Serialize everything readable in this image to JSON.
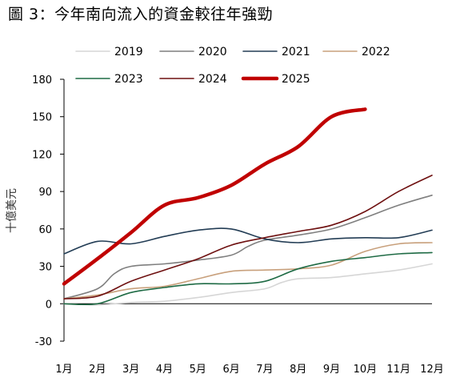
{
  "title": "圖 3：今年南向流入的資金較往年強勁",
  "chart_data": {
    "type": "line",
    "title": "圖 3：今年南向流入的資金較往年強勁",
    "xlabel": "",
    "ylabel": "十億美元",
    "categories": [
      "1月",
      "2月",
      "3月",
      "4月",
      "5月",
      "6月",
      "7月",
      "8月",
      "9月",
      "10月",
      "11月",
      "12月"
    ],
    "x": [
      1,
      2,
      3,
      4,
      5,
      6,
      7,
      8,
      9,
      10,
      11,
      12
    ],
    "xlim": [
      1,
      12
    ],
    "ylim": [
      -30,
      180
    ],
    "yticks": [
      -30,
      0,
      30,
      60,
      90,
      120,
      150,
      180
    ],
    "grid": false,
    "legend_position": "top",
    "series": [
      {
        "name": "2019",
        "color": "#d6d6d6",
        "width": 1.6,
        "points": [
          [
            1,
            0
          ],
          [
            2,
            -1
          ],
          [
            3,
            1
          ],
          [
            4,
            2
          ],
          [
            5,
            5
          ],
          [
            6,
            9
          ],
          [
            7,
            12
          ],
          [
            7.5,
            17
          ],
          [
            8,
            20
          ],
          [
            9,
            21
          ],
          [
            10,
            24
          ],
          [
            11,
            27
          ],
          [
            12,
            32
          ]
        ]
      },
      {
        "name": "2020",
        "color": "#7f7f7f",
        "width": 1.6,
        "points": [
          [
            1,
            4
          ],
          [
            2,
            12
          ],
          [
            2.5,
            24
          ],
          [
            3,
            30
          ],
          [
            4,
            32
          ],
          [
            5,
            35
          ],
          [
            6,
            39
          ],
          [
            6.5,
            46
          ],
          [
            7,
            51
          ],
          [
            8,
            55
          ],
          [
            9,
            60
          ],
          [
            10,
            69
          ],
          [
            11,
            79
          ],
          [
            12,
            87
          ]
        ]
      },
      {
        "name": "2021",
        "color": "#233d55",
        "width": 1.6,
        "points": [
          [
            1,
            40
          ],
          [
            2,
            50
          ],
          [
            3,
            48
          ],
          [
            4,
            54
          ],
          [
            5,
            59
          ],
          [
            6,
            60
          ],
          [
            7,
            52
          ],
          [
            8,
            49
          ],
          [
            9,
            52
          ],
          [
            10,
            53
          ],
          [
            11,
            53
          ],
          [
            12,
            59
          ]
        ]
      },
      {
        "name": "2022",
        "color": "#c8a07c",
        "width": 1.6,
        "points": [
          [
            1,
            4
          ],
          [
            2,
            7
          ],
          [
            3,
            12
          ],
          [
            4,
            14
          ],
          [
            5,
            20
          ],
          [
            6,
            26
          ],
          [
            7,
            27
          ],
          [
            8,
            28
          ],
          [
            9,
            31
          ],
          [
            10,
            42
          ],
          [
            11,
            48
          ],
          [
            12,
            49
          ]
        ]
      },
      {
        "name": "2023",
        "color": "#1f6b45",
        "width": 1.6,
        "points": [
          [
            1,
            0
          ],
          [
            2,
            0
          ],
          [
            3,
            9
          ],
          [
            4,
            13
          ],
          [
            5,
            16
          ],
          [
            6,
            16
          ],
          [
            7,
            18
          ],
          [
            8,
            28
          ],
          [
            9,
            34
          ],
          [
            10,
            37
          ],
          [
            11,
            40
          ],
          [
            12,
            41
          ]
        ]
      },
      {
        "name": "2024",
        "color": "#6e1010",
        "width": 1.6,
        "points": [
          [
            1,
            4
          ],
          [
            2,
            6
          ],
          [
            3,
            18
          ],
          [
            4,
            27
          ],
          [
            5,
            36
          ],
          [
            6,
            47
          ],
          [
            7,
            53
          ],
          [
            8,
            58
          ],
          [
            9,
            63
          ],
          [
            10,
            74
          ],
          [
            11,
            90
          ],
          [
            12,
            103
          ]
        ]
      },
      {
        "name": "2025",
        "color": "#c00000",
        "width": 4.5,
        "points": [
          [
            1,
            16
          ],
          [
            2,
            36
          ],
          [
            3,
            57
          ],
          [
            4,
            79
          ],
          [
            5,
            85
          ],
          [
            6,
            95
          ],
          [
            7,
            112
          ],
          [
            8,
            126
          ],
          [
            9,
            150
          ],
          [
            10,
            156
          ]
        ]
      }
    ]
  }
}
